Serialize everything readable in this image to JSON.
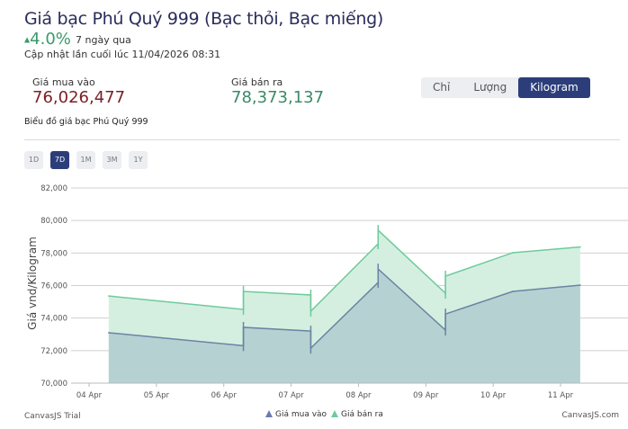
{
  "header": {
    "title": "Giá bạc Phú Quý 999 (Bạc thỏi, Bạc miếng)",
    "change": "4.0%",
    "change_direction": "up",
    "period": "7 ngày qua",
    "updated": "Cập nhật lần cuối lúc 11/04/2026 08:31"
  },
  "prices": {
    "buy_label": "Giá mua vào",
    "buy_value": "76,026,477",
    "sell_label": "Giá bán ra",
    "sell_value": "78,373,137"
  },
  "units": [
    {
      "label": "Chỉ",
      "active": false
    },
    {
      "label": "Lượng",
      "active": false
    },
    {
      "label": "Kilogram",
      "active": true
    }
  ],
  "chart_heading": "Biểu đồ giá bạc Phú Quý 999",
  "ranges": [
    {
      "label": "1D",
      "active": false
    },
    {
      "label": "7D",
      "active": true
    },
    {
      "label": "1M",
      "active": false
    },
    {
      "label": "3M",
      "active": false
    },
    {
      "label": "1Y",
      "active": false
    }
  ],
  "colors": {
    "buy": "#6b84a3",
    "buy_fill": "#b6d1d2",
    "sell": "#6dcb9c",
    "sell_fill": "#d4efe0",
    "up": "#3a9a6a",
    "buy_value": "#7a1f24",
    "active_button": "#2c3e7a"
  },
  "chart_data": {
    "type": "area",
    "ylabel": "Giá vnd/Kilogram",
    "ylim": [
      70000,
      82000
    ],
    "yticks": [
      "70,000",
      "72,000",
      "74,000",
      "76,000",
      "78,000",
      "80,000",
      "82,000"
    ],
    "xticks": [
      "04 Apr",
      "05 Apr",
      "06 Apr",
      "07 Apr",
      "08 Apr",
      "09 Apr",
      "10 Apr",
      "11 Apr"
    ],
    "grid": true,
    "legend_position": "bottom",
    "series": [
      {
        "name": "Giá mua vào",
        "points": [
          [
            "04 Apr 07:00",
            73100
          ],
          [
            "06 Apr 07:00",
            72300
          ],
          [
            "06 Apr 07:00",
            73430
          ],
          [
            "07 Apr 07:00",
            73200
          ],
          [
            "07 Apr 07:00",
            72150
          ],
          [
            "08 Apr 07:00",
            76190
          ],
          [
            "08 Apr 07:00",
            77020
          ],
          [
            "09 Apr 07:00",
            73260
          ],
          [
            "09 Apr 07:00",
            74250
          ],
          [
            "10 Apr 07:00",
            75640
          ],
          [
            "11 Apr 07:00",
            76026
          ]
        ]
      },
      {
        "name": "Giá bán ra",
        "points": [
          [
            "04 Apr 07:00",
            75360
          ],
          [
            "06 Apr 07:00",
            74530
          ],
          [
            "06 Apr 07:00",
            75640
          ],
          [
            "07 Apr 07:00",
            75420
          ],
          [
            "07 Apr 07:00",
            74420
          ],
          [
            "08 Apr 07:00",
            78570
          ],
          [
            "08 Apr 07:00",
            79400
          ],
          [
            "09 Apr 07:00",
            75530
          ],
          [
            "09 Apr 07:00",
            76580
          ],
          [
            "10 Apr 07:00",
            78020
          ],
          [
            "11 Apr 07:00",
            78373
          ]
        ]
      }
    ],
    "watermark_left": "CanvasJS Trial",
    "watermark_right": "CanvasJS.com"
  }
}
